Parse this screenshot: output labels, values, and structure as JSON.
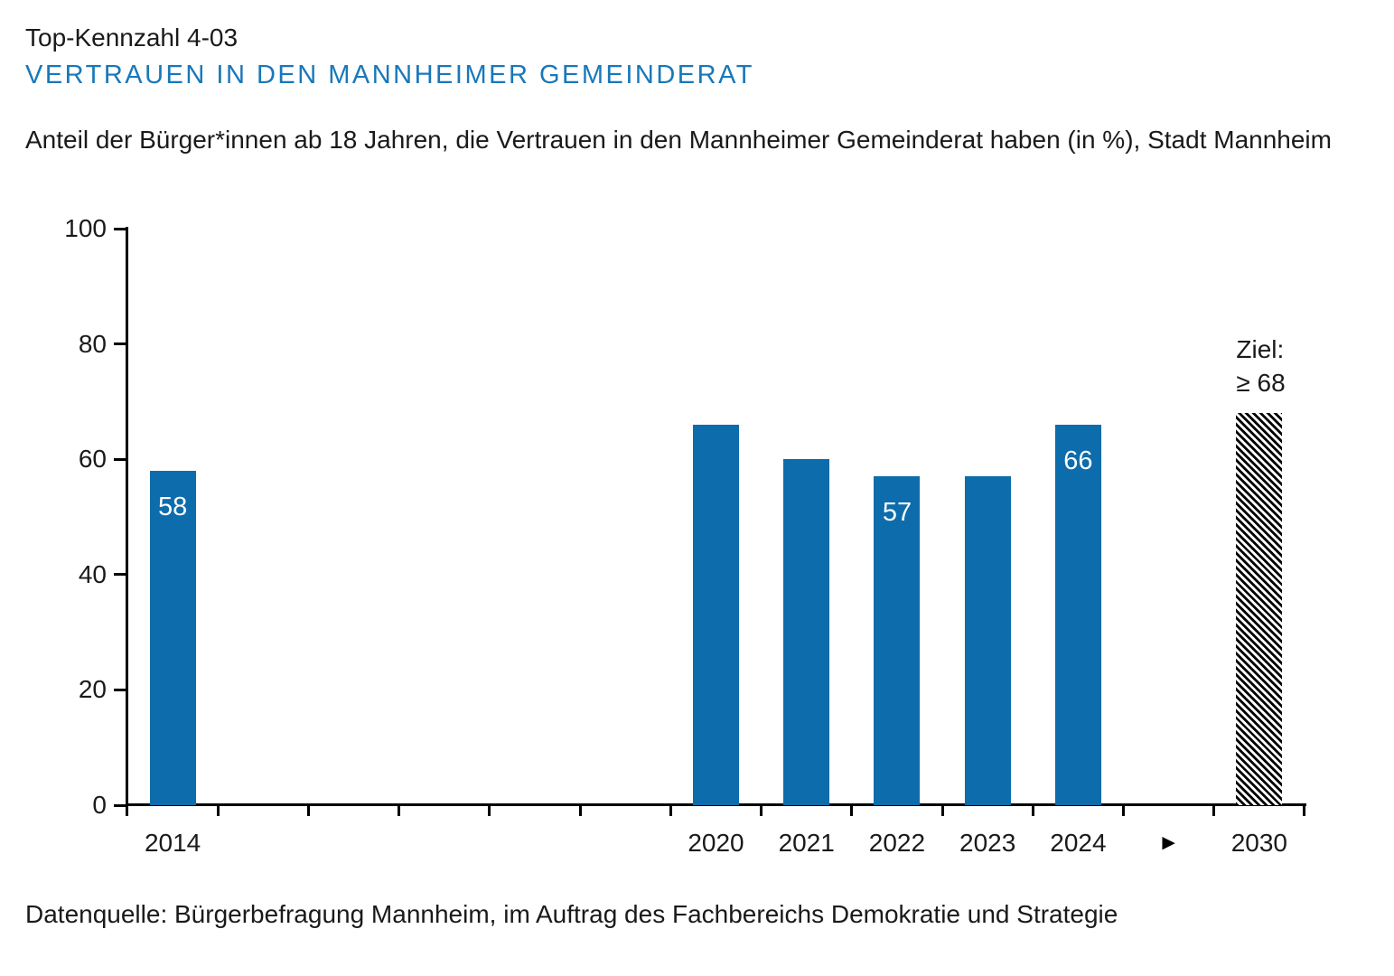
{
  "header": {
    "kennzahl": "Top-Kennzahl 4-03",
    "title": "VERTRAUEN IN DEN MANNHEIMER GEMEINDERAT",
    "subtitle": "Anteil der Bürger*innen ab 18 Jahren, die Vertrauen in den Mannheimer Gemeinderat haben (in %), Stadt Mannheim"
  },
  "footer": {
    "source": "Datenquelle: Bürgerbefragung Mannheim, im Auftrag des Fachbereichs Demokratie und Strategie"
  },
  "colors": {
    "bar_blue": "#0d6cab",
    "title_blue": "#1878ba",
    "axis_black": "#000000",
    "bar_label_white": "#ffffff"
  },
  "chart_data": {
    "type": "bar",
    "unit": "%",
    "categories": [
      "2014",
      "2020",
      "2021",
      "2022",
      "2023",
      "2024"
    ],
    "values": [
      58,
      66,
      60,
      57,
      57,
      66
    ],
    "value_labels_shown": [
      "58",
      "",
      "",
      "57",
      "",
      "66"
    ],
    "target": {
      "category": "2030",
      "value": 68,
      "annotation_line1": "Ziel:",
      "annotation_line2": "≥ 68",
      "fill": "diagonal-hatch-black-white"
    },
    "x_axis": {
      "slots": [
        "2014",
        "",
        "",
        "",
        "",
        "",
        "2020",
        "2021",
        "2022",
        "2023",
        "2024",
        "►",
        "2030"
      ],
      "arrow_glyph": "►"
    },
    "y_axis": {
      "min": 0,
      "max": 100,
      "ticks": [
        0,
        20,
        40,
        60,
        80,
        100
      ]
    },
    "grid": false,
    "legend": false,
    "title": "Vertrauen in den Mannheimer Gemeinderat (in %)"
  }
}
